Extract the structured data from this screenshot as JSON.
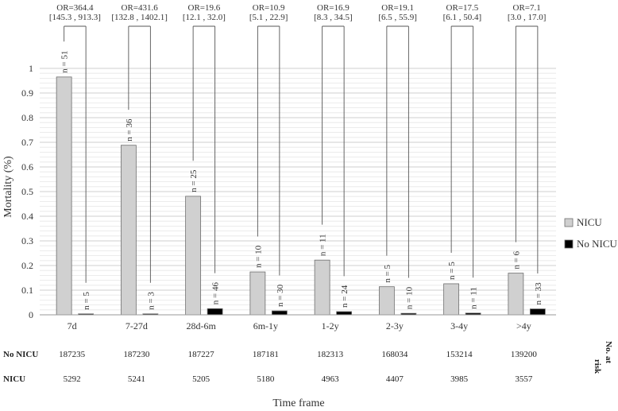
{
  "chart_data": {
    "type": "bar",
    "ylabel": "Mortality (%)",
    "xlabel": "Time frame",
    "ylim": [
      0,
      1
    ],
    "yticks": [
      "0",
      "0.1",
      "0.2",
      "0.3",
      "0.4",
      "0.5",
      "0.6",
      "0.7",
      "0.8",
      "0.9",
      "1"
    ],
    "categories": [
      "7d",
      "7-27d",
      "28d-6m",
      "6m-1y",
      "1-2y",
      "2-3y",
      "3-4y",
      ">4y"
    ],
    "series": [
      {
        "name": "NICU",
        "color": "#d0d0d0",
        "values": [
          0.965,
          0.688,
          0.481,
          0.174,
          0.222,
          0.114,
          0.126,
          0.169
        ],
        "labels": [
          "n = 51",
          "n = 36",
          "n = 25",
          "n = 10",
          "n = 11",
          "n = 5",
          "n = 5",
          "n = 6"
        ]
      },
      {
        "name": "No NICU",
        "color": "#000000",
        "values": [
          0.003,
          0.002,
          0.025,
          0.016,
          0.013,
          0.006,
          0.007,
          0.024
        ],
        "labels": [
          "n = 5",
          "n = 3",
          "n = 46",
          "n = 30",
          "n = 24",
          "n = 10",
          "n = 11",
          "n = 33"
        ]
      }
    ],
    "or_labels": [
      {
        "or": "OR=364.4",
        "ci": "[145.3 , 913.3]"
      },
      {
        "or": "OR=431.6",
        "ci": "[132.8 , 1402.1]"
      },
      {
        "or": "OR=19.6",
        "ci": "[12.1 , 32.0]"
      },
      {
        "or": "OR=10.9",
        "ci": "[5.1 , 22.9]"
      },
      {
        "or": "OR=16.9",
        "ci": "[8.3 , 34.5]"
      },
      {
        "or": "OR=19.1",
        "ci": "[6.5 , 55.9]"
      },
      {
        "or": "OR=17.5",
        "ci": "[6.1 , 50.4]"
      },
      {
        "or": "OR=7.1",
        "ci": "[3.0 , 17.0]"
      }
    ],
    "legend_position": "right",
    "grid": true,
    "risk_table": {
      "title_line1": "No. at",
      "title_line2": "risk",
      "rows": [
        {
          "label": "No NICU",
          "values": [
            "187235",
            "187230",
            "187227",
            "187181",
            "182313",
            "168034",
            "153214",
            "139200"
          ]
        },
        {
          "label": "NICU",
          "values": [
            "5292",
            "5241",
            "5205",
            "5180",
            "4963",
            "4407",
            "3985",
            "3557"
          ]
        }
      ]
    }
  }
}
